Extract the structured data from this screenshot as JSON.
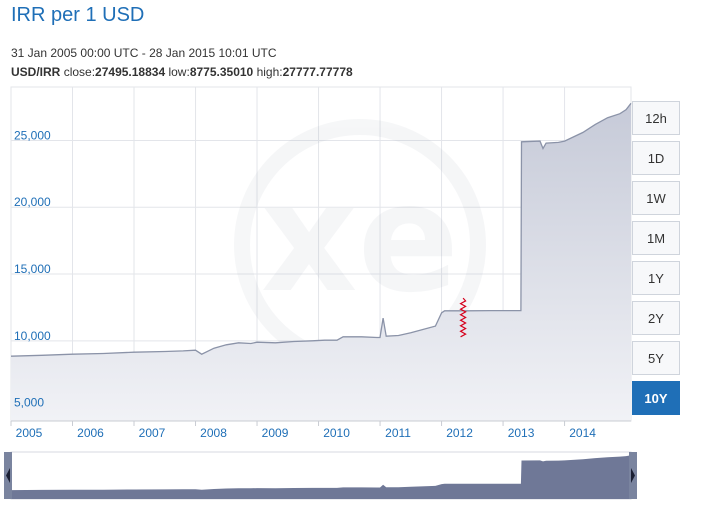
{
  "header": {
    "title": "IRR per 1 USD",
    "range": "31 Jan 2005 00:00 UTC - 28 Jan 2015 10:01 UTC",
    "pair": "USD/IRR",
    "close_label": "close:",
    "close": "27495.18834",
    "low_label": "low:",
    "low": "8775.35010",
    "high_label": "high:",
    "high": "27777.77778"
  },
  "range_buttons": [
    {
      "label": "12h",
      "active": false
    },
    {
      "label": "1D",
      "active": false
    },
    {
      "label": "1W",
      "active": false
    },
    {
      "label": "1M",
      "active": false
    },
    {
      "label": "1Y",
      "active": false
    },
    {
      "label": "2Y",
      "active": false
    },
    {
      "label": "5Y",
      "active": false
    },
    {
      "label": "10Y",
      "active": true
    }
  ],
  "colors": {
    "line": "#8b93a8",
    "area_top": "#c6cad8",
    "area_bottom": "#f1f2f6",
    "navigator_fill": "#6f7897",
    "active_button": "#1f6fb7",
    "spike": "#d6001c"
  },
  "chart_data": {
    "type": "area",
    "title": "IRR per 1 USD",
    "xlabel": "",
    "ylabel": "",
    "xlim": [
      2005.0,
      2015.08
    ],
    "ylim": [
      4000,
      29000
    ],
    "grid": true,
    "x_ticks": [
      "2005",
      "2006",
      "2007",
      "2008",
      "2009",
      "2010",
      "2011",
      "2012",
      "2013",
      "2014"
    ],
    "y_ticks": [
      5000,
      10000,
      15000,
      20000,
      25000
    ],
    "y_tick_labels": [
      "5,000",
      "10,000",
      "15,000",
      "20,000",
      "25,000"
    ],
    "x": [
      2005.0,
      2005.5,
      2006.0,
      2006.5,
      2007.0,
      2007.5,
      2007.8,
      2008.0,
      2008.1,
      2008.3,
      2008.5,
      2008.7,
      2008.9,
      2009.0,
      2009.3,
      2009.6,
      2009.9,
      2010.1,
      2010.3,
      2010.4,
      2010.7,
      2010.95,
      2011.0,
      2011.05,
      2011.1,
      2011.3,
      2011.5,
      2011.9,
      2012.0,
      2012.05,
      2012.4,
      2012.8,
      2013.0,
      2013.29,
      2013.3,
      2013.6,
      2013.65,
      2013.7,
      2013.9,
      2014.0,
      2014.3,
      2014.5,
      2014.7,
      2014.9,
      2015.0,
      2015.08
    ],
    "values": [
      8850,
      8920,
      9000,
      9050,
      9150,
      9200,
      9250,
      9300,
      9000,
      9450,
      9700,
      9850,
      9800,
      9900,
      9850,
      9950,
      10000,
      10050,
      10050,
      10300,
      10300,
      10250,
      10250,
      11700,
      10350,
      10400,
      10600,
      11100,
      12100,
      12250,
      12250,
      12260,
      12260,
      12260,
      24900,
      24950,
      24400,
      24800,
      24850,
      24950,
      25600,
      26200,
      26700,
      27000,
      27300,
      27777
    ],
    "series": [
      {
        "name": "USD/IRR"
      }
    ],
    "annotations": [
      {
        "type": "spike",
        "x": 2012.35,
        "low": 10300,
        "high": 13200
      }
    ]
  }
}
